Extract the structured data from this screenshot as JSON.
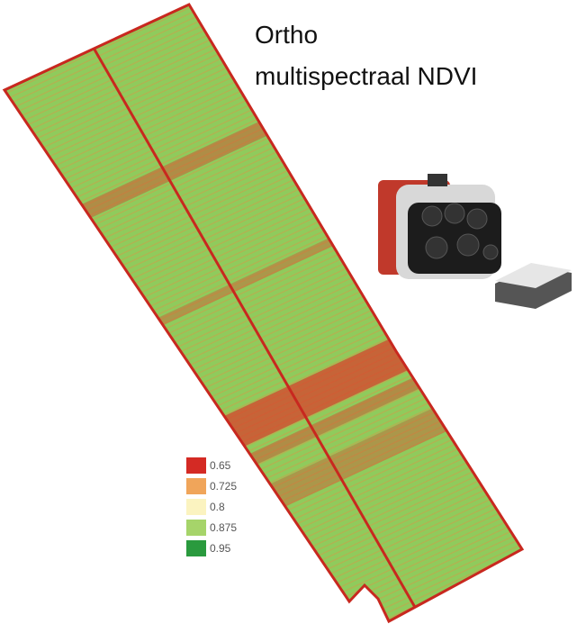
{
  "title_lines": [
    "Ortho",
    "multispectraal NDVI"
  ],
  "legend": [
    {
      "label": "0.65",
      "color": "#d42a24"
    },
    {
      "label": "0.725",
      "color": "#f0a55a"
    },
    {
      "label": "0.8",
      "color": "#fbf3c0"
    },
    {
      "label": "0.875",
      "color": "#a6d46a"
    },
    {
      "label": "0.95",
      "color": "#2a9a3e"
    }
  ]
}
